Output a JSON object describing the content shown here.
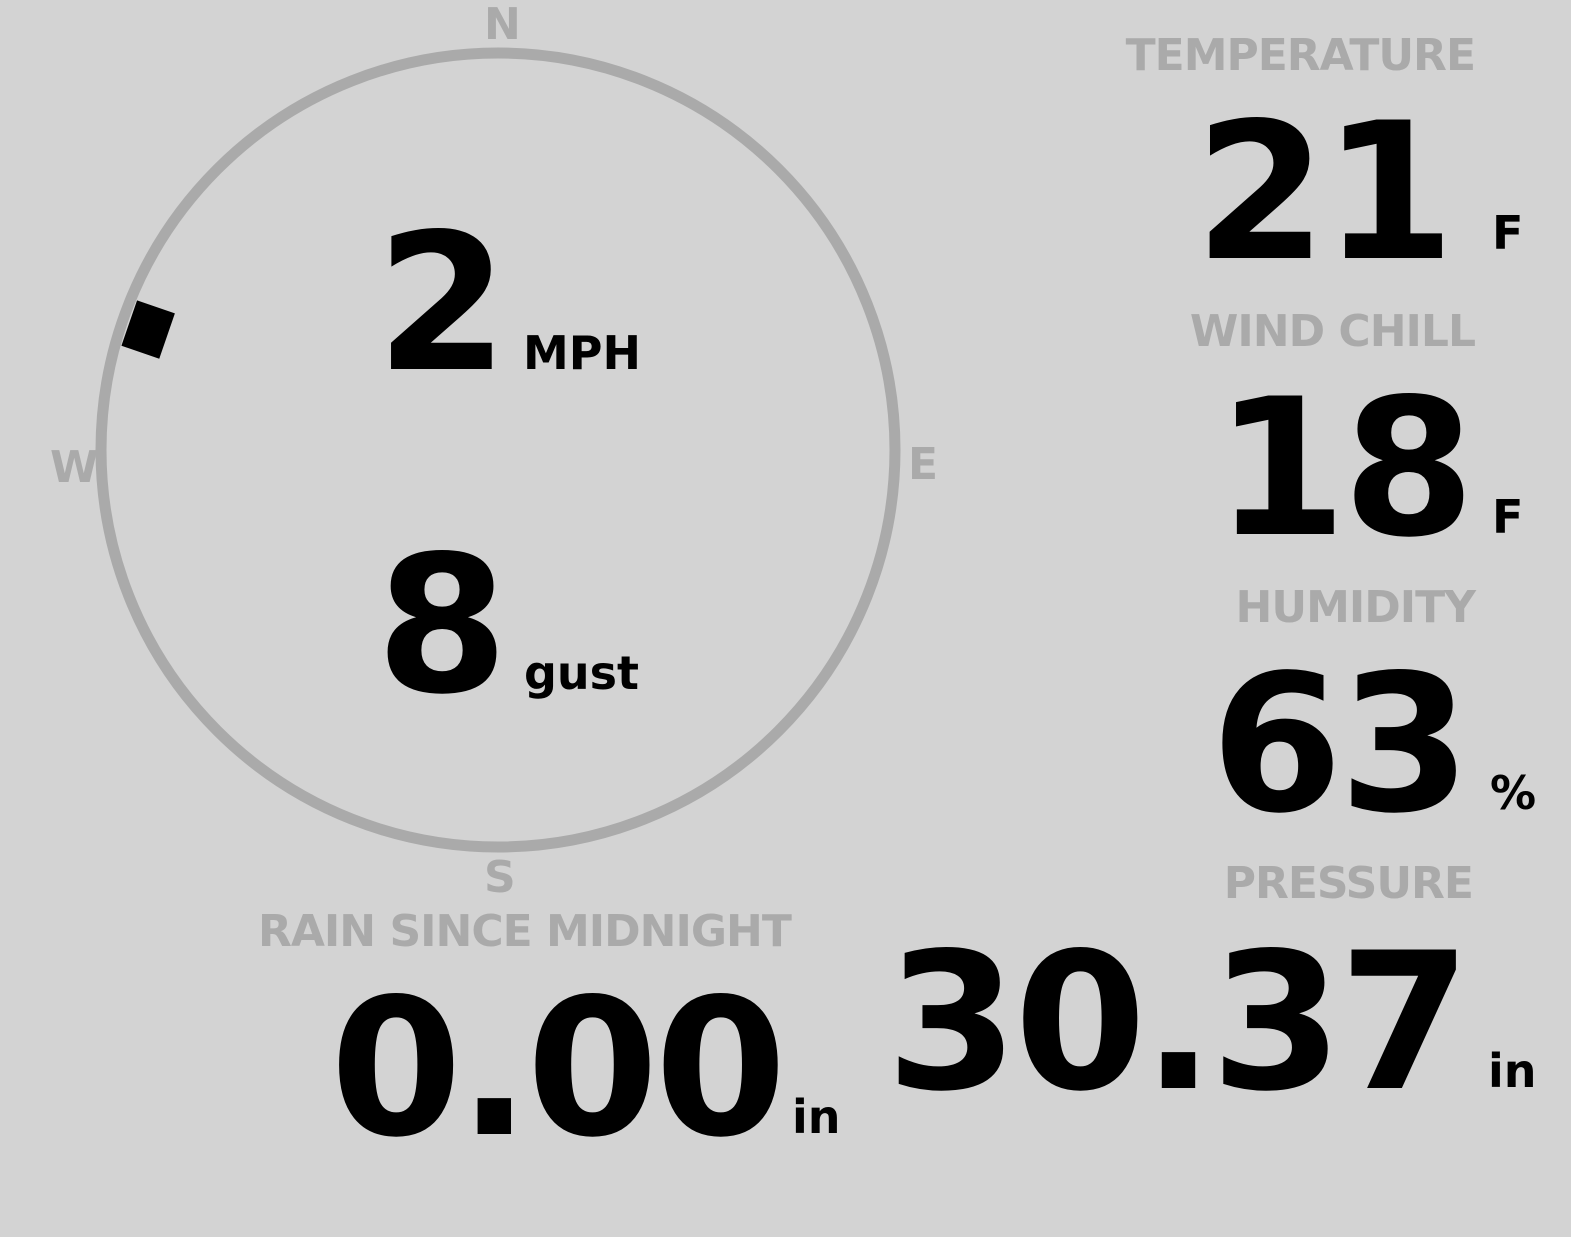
{
  "colors": {
    "background": "#d3d3d3",
    "label": "#aaaaaa",
    "value": "#000000",
    "ring": "#aaaaaa",
    "indicator": "#000000"
  },
  "wind": {
    "compass": {
      "n": "N",
      "e": "E",
      "s": "S",
      "w": "W"
    },
    "direction_degrees": 289,
    "speed": "2",
    "speed_unit": "MPH",
    "gust": "8",
    "gust_unit": "gust"
  },
  "temperature": {
    "label": "TEMPERATURE",
    "value": "21",
    "unit": "F"
  },
  "wind_chill": {
    "label": "WIND CHILL",
    "value": "18",
    "unit": "F"
  },
  "humidity": {
    "label": "HUMIDITY",
    "value": "63",
    "unit": "%"
  },
  "rain": {
    "label": "RAIN SINCE MIDNIGHT",
    "value": "0.00",
    "unit": "in"
  },
  "pressure": {
    "label": "PRESSURE",
    "value": "30.37",
    "unit": "in"
  }
}
